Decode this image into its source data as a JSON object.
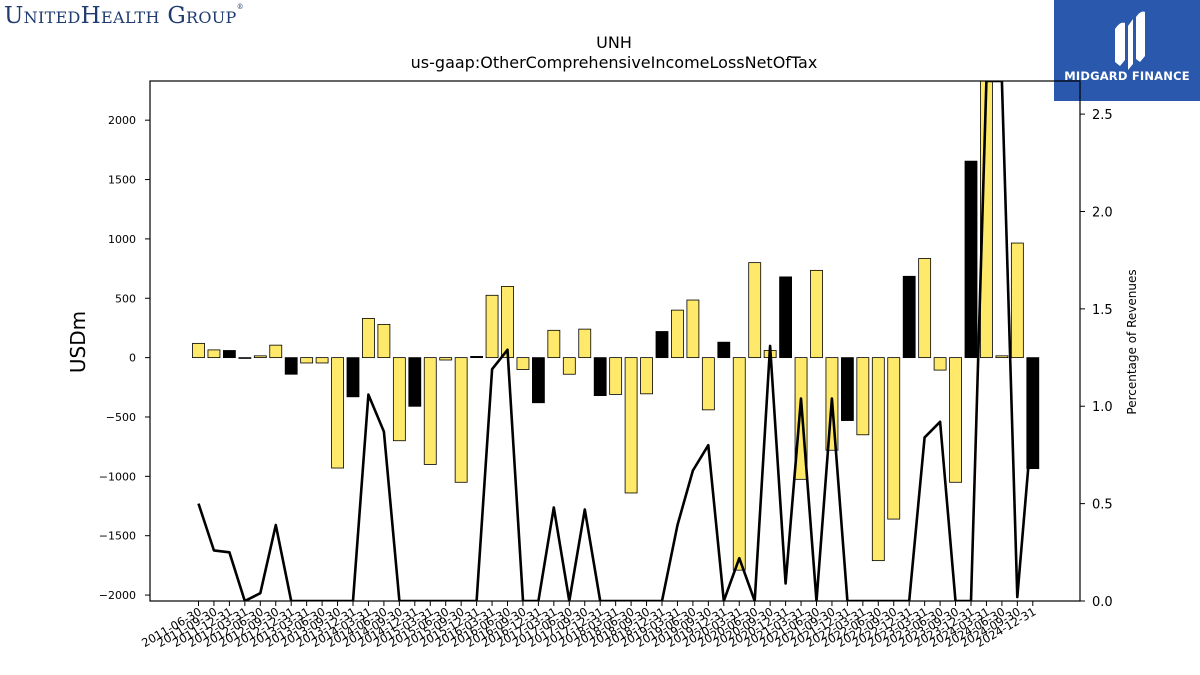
{
  "header": {
    "logo_text": "UnitedHealth Group",
    "logo_mark": "®",
    "brand_name": "MIDGARD FINANCE"
  },
  "chart_data": {
    "type": "bar",
    "title": "UNH",
    "subtitle": "us-gaap:OtherComprehensiveIncomeLossNetOfTax",
    "ylabel": "USDm",
    "y2label": "Percentage of Revenues",
    "ylim": [
      -2050,
      2330
    ],
    "y2lim": [
      0.0,
      2.67
    ],
    "yticks": [
      -2000,
      -1500,
      -1000,
      -500,
      0,
      500,
      1000,
      1500,
      2000
    ],
    "y2ticks": [
      "0.0",
      "0.5",
      "1.0",
      "1.5",
      "2.0",
      "2.5"
    ],
    "colors": {
      "quarter": "#ffe96b",
      "year_end": "#000000",
      "line": "#000000"
    },
    "categories": [
      "2011-06-30",
      "2011-09-30",
      "2011-12-31",
      "2012-03-31",
      "2012-06-30",
      "2012-09-30",
      "2012-12-31",
      "2013-03-31",
      "2013-06-30",
      "2013-09-30",
      "2013-12-31",
      "2014-03-31",
      "2014-06-30",
      "2014-09-30",
      "2014-12-31",
      "2015-03-31",
      "2015-06-30",
      "2015-09-30",
      "2015-12-31",
      "2016-03-31",
      "2016-06-30",
      "2016-09-30",
      "2016-12-31",
      "2017-03-31",
      "2017-06-30",
      "2017-09-30",
      "2017-12-31",
      "2018-03-31",
      "2018-06-30",
      "2018-09-30",
      "2018-12-31",
      "2019-03-31",
      "2019-06-30",
      "2019-09-30",
      "2019-12-31",
      "2020-03-31",
      "2020-06-30",
      "2020-09-30",
      "2020-12-31",
      "2021-03-31",
      "2021-06-30",
      "2021-09-30",
      "2021-12-31",
      "2022-03-31",
      "2022-06-30",
      "2022-09-30",
      "2022-12-31",
      "2023-03-31",
      "2023-06-30",
      "2023-09-30",
      "2023-12-31",
      "2024-03-31",
      "2024-06-30",
      "2024-09-30",
      "2024-12-31"
    ],
    "values": [
      120,
      65,
      60,
      -5,
      15,
      105,
      -140,
      -45,
      -45,
      -930,
      -330,
      330,
      280,
      -700,
      -410,
      -900,
      -20,
      -1050,
      10,
      525,
      600,
      -100,
      -380,
      230,
      -140,
      240,
      -320,
      -310,
      -1140,
      -305,
      220,
      400,
      485,
      -440,
      130,
      -1790,
      800,
      60,
      680,
      -1025,
      735,
      -780,
      -530,
      -650,
      -1710,
      -1360,
      685,
      835,
      -105,
      -1050,
      1655,
      2330,
      15,
      965,
      -935
    ],
    "year_end": [
      false,
      false,
      true,
      false,
      false,
      false,
      true,
      false,
      false,
      false,
      true,
      false,
      false,
      false,
      true,
      false,
      false,
      false,
      true,
      false,
      false,
      false,
      true,
      false,
      false,
      false,
      true,
      false,
      false,
      false,
      true,
      false,
      false,
      false,
      true,
      false,
      false,
      false,
      true,
      false,
      false,
      false,
      true,
      false,
      false,
      false,
      true,
      false,
      false,
      false,
      true,
      false,
      false,
      false,
      true
    ],
    "pct_revenue": [
      0.5,
      0.26,
      0.25,
      0.0,
      0.04,
      0.39,
      0.0,
      0.0,
      0.0,
      0.0,
      0.0,
      1.06,
      0.87,
      0.0,
      0.0,
      0.0,
      0.0,
      0.0,
      0.0,
      1.19,
      1.29,
      0.0,
      0.0,
      0.48,
      0.0,
      0.47,
      0.0,
      0.0,
      0.0,
      0.0,
      0.0,
      0.39,
      0.67,
      0.8,
      0.0,
      0.22,
      0.0,
      1.31,
      0.09,
      1.04,
      0.0,
      1.04,
      0.0,
      0.0,
      0.0,
      0.0,
      0.0,
      0.84,
      0.92,
      0.0,
      0.0,
      2.67,
      2.67,
      0.02,
      0.96
    ]
  }
}
